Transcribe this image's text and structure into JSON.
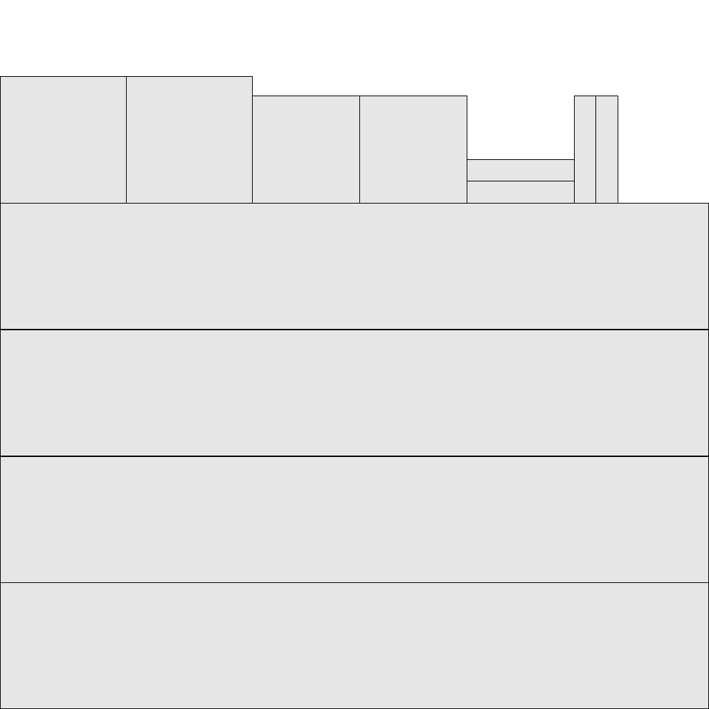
{
  "colors": {
    "background": "#ffffff",
    "block_fill": "#e6e6e6",
    "block_stroke": "#000000"
  }
}
